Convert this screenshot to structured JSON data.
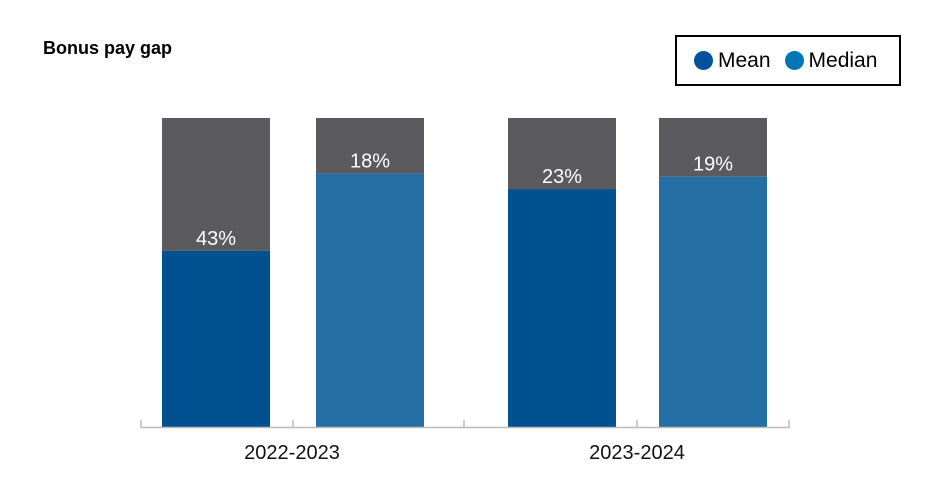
{
  "chart_data": {
    "type": "bar",
    "title": "Bonus pay gap",
    "categories": [
      "2022-2023",
      "2023-2024"
    ],
    "series": [
      {
        "name": "Mean",
        "values": [
          43,
          23
        ],
        "color": "#00518F"
      },
      {
        "name": "Median",
        "values": [
          18,
          19
        ],
        "color": "#2470A6"
      }
    ],
    "gap_color": "#5B5A5F",
    "value_labels": [
      [
        "43%",
        "18%"
      ],
      [
        "23%",
        "19%"
      ]
    ],
    "legend_colors": [
      "#00539B",
      "#0076B4"
    ],
    "ylim": [
      0,
      100
    ],
    "legend": "top-right",
    "grid": false
  }
}
